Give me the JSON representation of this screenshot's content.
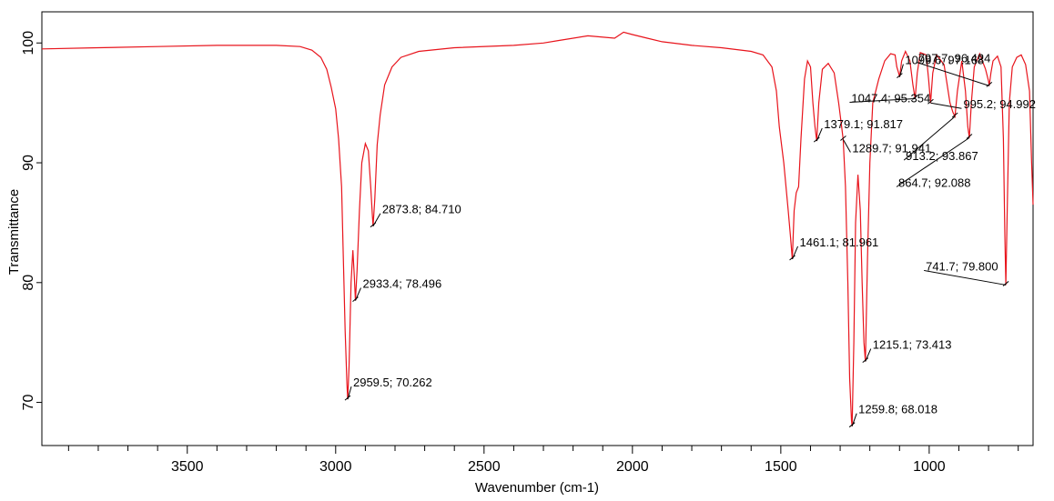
{
  "chart_data": {
    "type": "line",
    "xlabel": "Wavenumber (cm-1)",
    "ylabel": "Transmittance",
    "xlim": [
      3990,
      650
    ],
    "ylim": [
      66.4,
      102.6
    ],
    "x_reversed": true,
    "x_ticks": [
      3500,
      3000,
      2500,
      2000,
      1500,
      1000
    ],
    "x_minor_step": 100,
    "y_ticks": [
      70,
      80,
      90,
      100
    ],
    "grid": false,
    "line_color": "#e8141c",
    "series": [
      {
        "points": [
          [
            3990,
            99.5
          ],
          [
            3800,
            99.6
          ],
          [
            3600,
            99.7
          ],
          [
            3400,
            99.8
          ],
          [
            3200,
            99.8
          ],
          [
            3120,
            99.7
          ],
          [
            3080,
            99.4
          ],
          [
            3050,
            98.8
          ],
          [
            3030,
            97.8
          ],
          [
            3015,
            96.3
          ],
          [
            3000,
            94.5
          ],
          [
            2990,
            92.0
          ],
          [
            2980,
            88.0
          ],
          [
            2975,
            83.0
          ],
          [
            2968,
            76.0
          ],
          [
            2962,
            71.5
          ],
          [
            2959.5,
            70.262
          ],
          [
            2955,
            73.0
          ],
          [
            2948,
            80.0
          ],
          [
            2942,
            82.7
          ],
          [
            2937,
            80.5
          ],
          [
            2933.4,
            78.496
          ],
          [
            2928,
            81.0
          ],
          [
            2920,
            86.0
          ],
          [
            2912,
            90.0
          ],
          [
            2900,
            91.6
          ],
          [
            2890,
            91.0
          ],
          [
            2882,
            88.0
          ],
          [
            2876,
            85.5
          ],
          [
            2873.8,
            84.71
          ],
          [
            2868,
            87.0
          ],
          [
            2860,
            91.5
          ],
          [
            2850,
            94.0
          ],
          [
            2835,
            96.5
          ],
          [
            2810,
            98.0
          ],
          [
            2780,
            98.8
          ],
          [
            2720,
            99.3
          ],
          [
            2600,
            99.6
          ],
          [
            2400,
            99.8
          ],
          [
            2300,
            100.0
          ],
          [
            2250,
            100.2
          ],
          [
            2150,
            100.6
          ],
          [
            2060,
            100.4
          ],
          [
            2030,
            100.9
          ],
          [
            2000,
            100.7
          ],
          [
            1950,
            100.4
          ],
          [
            1900,
            100.1
          ],
          [
            1800,
            99.8
          ],
          [
            1700,
            99.6
          ],
          [
            1600,
            99.3
          ],
          [
            1560,
            99.0
          ],
          [
            1530,
            98.0
          ],
          [
            1515,
            96.0
          ],
          [
            1505,
            93.0
          ],
          [
            1490,
            90.0
          ],
          [
            1475,
            86.0
          ],
          [
            1468,
            84.0
          ],
          [
            1461.1,
            81.961
          ],
          [
            1455,
            86.0
          ],
          [
            1448,
            87.5
          ],
          [
            1440,
            88.0
          ],
          [
            1432,
            92.0
          ],
          [
            1420,
            97.0
          ],
          [
            1410,
            98.5
          ],
          [
            1400,
            98.0
          ],
          [
            1392,
            95.0
          ],
          [
            1385,
            93.0
          ],
          [
            1379.1,
            91.817
          ],
          [
            1372,
            95.0
          ],
          [
            1360,
            97.8
          ],
          [
            1340,
            98.3
          ],
          [
            1320,
            97.5
          ],
          [
            1305,
            95.0
          ],
          [
            1295,
            93.0
          ],
          [
            1289.7,
            91.941
          ],
          [
            1282,
            88.0
          ],
          [
            1274,
            80.0
          ],
          [
            1268,
            72.0
          ],
          [
            1262,
            68.5
          ],
          [
            1259.8,
            68.018
          ],
          [
            1254,
            75.0
          ],
          [
            1248,
            85.0
          ],
          [
            1240,
            89.0
          ],
          [
            1232,
            86.0
          ],
          [
            1226,
            80.0
          ],
          [
            1220,
            75.0
          ],
          [
            1215.1,
            73.413
          ],
          [
            1208,
            82.0
          ],
          [
            1200,
            90.0
          ],
          [
            1190,
            95.0
          ],
          [
            1170,
            97.0
          ],
          [
            1150,
            98.5
          ],
          [
            1130,
            99.1
          ],
          [
            1115,
            99.0
          ],
          [
            1109,
            98.0
          ],
          [
            1103,
            97.5
          ],
          [
            1099.6,
            97.168
          ],
          [
            1093,
            98.5
          ],
          [
            1080,
            99.3
          ],
          [
            1065,
            98.5
          ],
          [
            1055,
            96.5
          ],
          [
            1047.4,
            95.354
          ],
          [
            1040,
            97.5
          ],
          [
            1030,
            99.2
          ],
          [
            1010,
            99.0
          ],
          [
            1002,
            97.0
          ],
          [
            995.2,
            94.992
          ],
          [
            988,
            97.5
          ],
          [
            975,
            99.0
          ],
          [
            950,
            98.2
          ],
          [
            930,
            95.0
          ],
          [
            920,
            94.2
          ],
          [
            913.2,
            93.867
          ],
          [
            905,
            96.0
          ],
          [
            890,
            98.5
          ],
          [
            878,
            96.0
          ],
          [
            870,
            93.0
          ],
          [
            864.7,
            92.088
          ],
          [
            858,
            95.0
          ],
          [
            848,
            98.0
          ],
          [
            830,
            99.1
          ],
          [
            810,
            97.8
          ],
          [
            800,
            96.8
          ],
          [
            797.7,
            96.424
          ],
          [
            792,
            97.5
          ],
          [
            785,
            98.5
          ],
          [
            770,
            98.9
          ],
          [
            758,
            98.0
          ],
          [
            750,
            92.0
          ],
          [
            745,
            84.0
          ],
          [
            741.7,
            79.8
          ],
          [
            737,
            86.0
          ],
          [
            730,
            95.0
          ],
          [
            720,
            98.0
          ],
          [
            705,
            98.8
          ],
          [
            690,
            99.0
          ],
          [
            675,
            98.2
          ],
          [
            662,
            96.0
          ],
          [
            655,
            90.0
          ],
          [
            650,
            86.5
          ]
        ]
      }
    ],
    "annotations": [
      {
        "x": 2959.5,
        "y": 70.262,
        "text": "2959.5; 70.262",
        "dx": 4,
        "dy": -18
      },
      {
        "x": 2933.4,
        "y": 78.496,
        "text": "2933.4; 78.496",
        "dx": 6,
        "dy": -18
      },
      {
        "x": 2873.8,
        "y": 84.71,
        "text": "2873.8; 84.710",
        "dx": 8,
        "dy": -18
      },
      {
        "x": 1461.1,
        "y": 81.961,
        "text": "1461.1; 81.961",
        "dx": 6,
        "dy": -18
      },
      {
        "x": 1379.1,
        "y": 91.817,
        "text": "1379.1; 91.817",
        "dx": 6,
        "dy": -18
      },
      {
        "x": 1289.7,
        "y": 91.941,
        "text": "1289.7; 91.941",
        "dx": 8,
        "dy": 10
      },
      {
        "x": 1259.8,
        "y": 68.018,
        "text": "1259.8; 68.018",
        "dx": 5,
        "dy": -18
      },
      {
        "x": 1215.1,
        "y": 73.413,
        "text": "1215.1; 73.413",
        "dx": 6,
        "dy": -18
      },
      {
        "x": 1099.6,
        "y": 97.168,
        "text": "1099.6; 97.168",
        "dx": 4,
        "dy": -18
      },
      {
        "x": 1047.4,
        "y": 95.354,
        "text": "1047.4; 95.354",
        "dx": -72,
        "dy": 0
      },
      {
        "x": 995.2,
        "y": 94.992,
        "text": "995.2; 94.992",
        "dx": 34,
        "dy": 2
      },
      {
        "x": 913.2,
        "y": 93.867,
        "text": "913.2; 93.867",
        "dx": -56,
        "dy": 44
      },
      {
        "x": 864.7,
        "y": 92.088,
        "text": "864.7; 92.088",
        "dx": -80,
        "dy": 50
      },
      {
        "x": 797.7,
        "y": 96.424,
        "text": "797.7; 96.424",
        "dx": -80,
        "dy": -30
      },
      {
        "x": 741.7,
        "y": 79.8,
        "text": "741.7; 79.800",
        "dx": -90,
        "dy": -20
      }
    ]
  }
}
